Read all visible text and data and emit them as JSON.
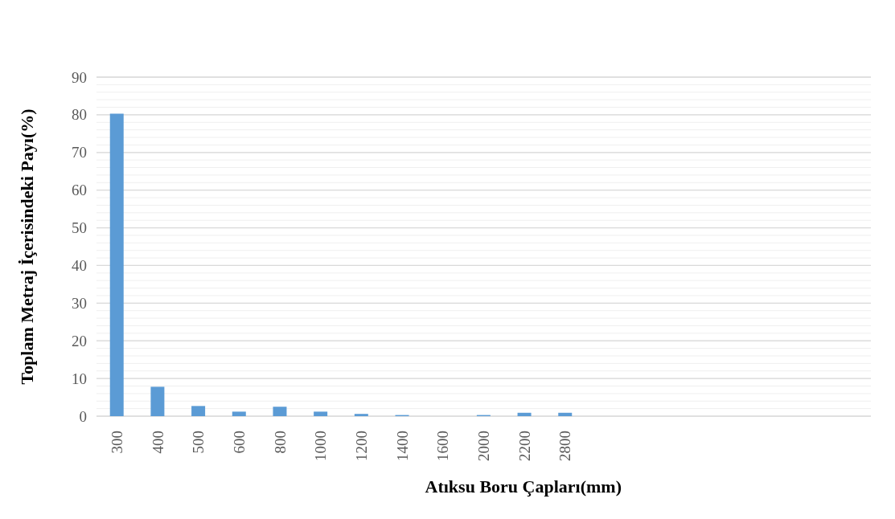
{
  "chart_data": {
    "type": "bar",
    "xlabel": "Atıksu Boru Çapları(mm)",
    "ylabel": "Toplam Metraj İçerisindeki Payı(%)",
    "categories": [
      "300",
      "400",
      "500",
      "600",
      "800",
      "1000",
      "1200",
      "1400",
      "1600",
      "2000",
      "2200",
      "2800",
      null,
      null,
      null,
      null,
      null,
      null,
      null
    ],
    "values": [
      80.3,
      7.8,
      2.7,
      1.2,
      2.5,
      1.2,
      0.6,
      0.3,
      0,
      0.3,
      0.9,
      0.9,
      null,
      null,
      null,
      null,
      null,
      null,
      null
    ],
    "color": "#5b9bd5",
    "ylim": [
      0,
      90
    ],
    "yticks": [
      0,
      {
        "value": 2,
        "label": null
      },
      {
        "value": 4,
        "label": null
      },
      {
        "value": 6,
        "label": null
      },
      {
        "value": 8,
        "label": null
      },
      10,
      {
        "value": 12,
        "label": null
      },
      {
        "value": 14,
        "label": null
      },
      {
        "value": 16,
        "label": null
      },
      {
        "value": 18,
        "label": null
      },
      20,
      {
        "value": 22,
        "label": null
      },
      {
        "value": 24,
        "label": null
      },
      {
        "value": 26,
        "label": null
      },
      {
        "value": 28,
        "label": null
      },
      30,
      {
        "value": 32,
        "label": null
      },
      {
        "value": 34,
        "label": null
      },
      {
        "value": 36,
        "label": null
      },
      {
        "value": 38,
        "label": null
      },
      40,
      {
        "value": 42,
        "label": null
      },
      {
        "value": 44,
        "label": null
      },
      {
        "value": 46,
        "label": null
      },
      {
        "value": 48,
        "label": null
      },
      50,
      {
        "value": 52,
        "label": null
      },
      {
        "value": 54,
        "label": null
      },
      {
        "value": 56,
        "label": null
      },
      {
        "value": 58,
        "label": null
      },
      60,
      {
        "value": 62,
        "label": null
      },
      {
        "value": 64,
        "label": null
      },
      {
        "value": 66,
        "label": null
      },
      {
        "value": 68,
        "label": null
      },
      70,
      {
        "value": 72,
        "label": null
      },
      {
        "value": 74,
        "label": null
      },
      {
        "value": 76,
        "label": null
      },
      {
        "value": 78,
        "label": null
      },
      80,
      {
        "value": 82,
        "label": null
      },
      {
        "value": 84,
        "label": null
      },
      {
        "value": 86,
        "label": null
      },
      {
        "value": 88,
        "label": null
      },
      90
    ],
    "grid": "y",
    "legend": false
  }
}
